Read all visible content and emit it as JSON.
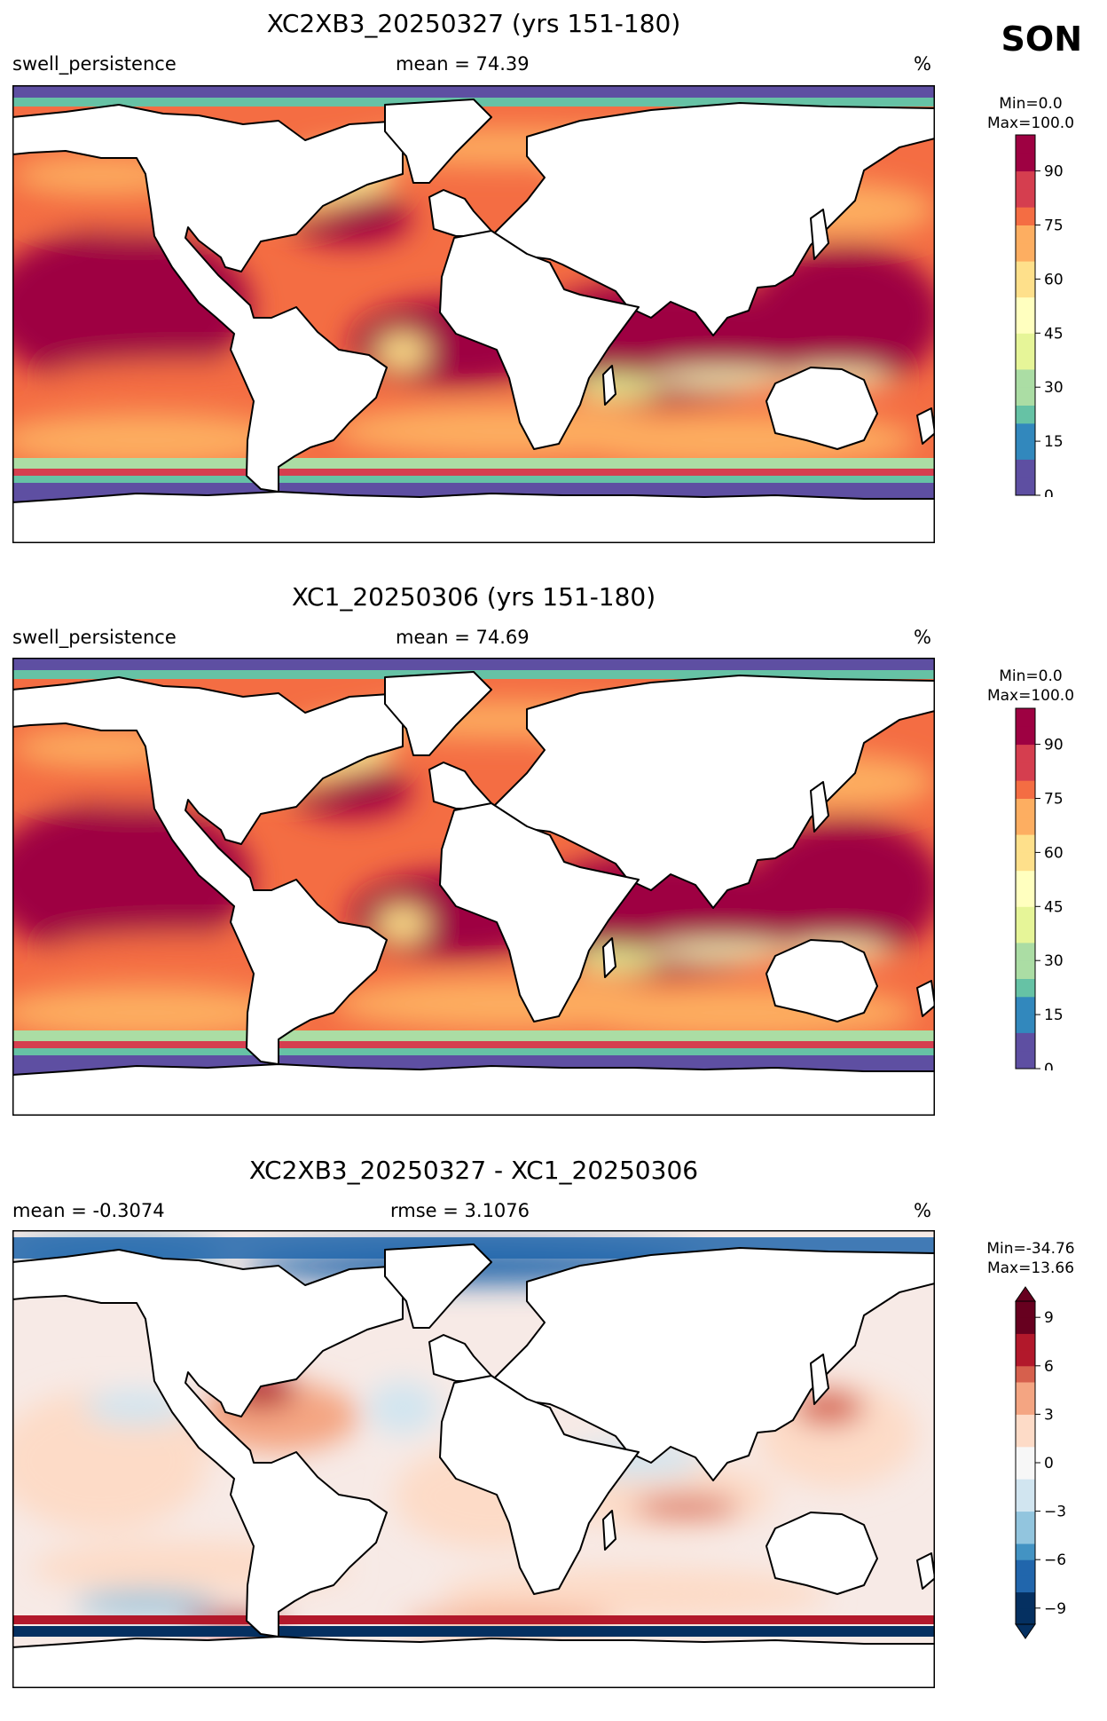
{
  "season_label": "SON",
  "panels": [
    {
      "title": "XC2XB3_20250327 (yrs 151-180)",
      "left_label": "swell_persistence",
      "center_label": "mean = 74.39",
      "right_label": "%",
      "colorbar": {
        "min_label": "Min=0.0",
        "max_label": "Max=100.0",
        "ticks": [
          "90",
          "75",
          "60",
          "45",
          "30",
          "15",
          "0"
        ],
        "tick_values": [
          90,
          75,
          60,
          45,
          30,
          15,
          0
        ],
        "range": [
          0,
          100
        ],
        "colormap": "Spectral_r"
      }
    },
    {
      "title": "XC1_20250306 (yrs 151-180)",
      "left_label": "swell_persistence",
      "center_label": "mean = 74.69",
      "right_label": "%",
      "colorbar": {
        "min_label": "Min=0.0",
        "max_label": "Max=100.0",
        "ticks": [
          "90",
          "75",
          "60",
          "45",
          "30",
          "15",
          "0"
        ],
        "tick_values": [
          90,
          75,
          60,
          45,
          30,
          15,
          0
        ],
        "range": [
          0,
          100
        ],
        "colormap": "Spectral_r"
      }
    },
    {
      "title": "XC2XB3_20250327 - XC1_20250306",
      "left_label": "mean = -0.3074",
      "center_label": "rmse = 3.1076",
      "right_label": "%",
      "colorbar": {
        "min_label": "Min=-34.76",
        "max_label": "Max=13.66",
        "ticks": [
          "9",
          "6",
          "3",
          "0",
          "−3",
          "−6",
          "−9"
        ],
        "tick_values": [
          9,
          6,
          3,
          0,
          -3,
          -6,
          -9
        ],
        "range": [
          -10,
          10
        ],
        "colormap": "RdBu_r",
        "extend": "both"
      }
    }
  ]
}
